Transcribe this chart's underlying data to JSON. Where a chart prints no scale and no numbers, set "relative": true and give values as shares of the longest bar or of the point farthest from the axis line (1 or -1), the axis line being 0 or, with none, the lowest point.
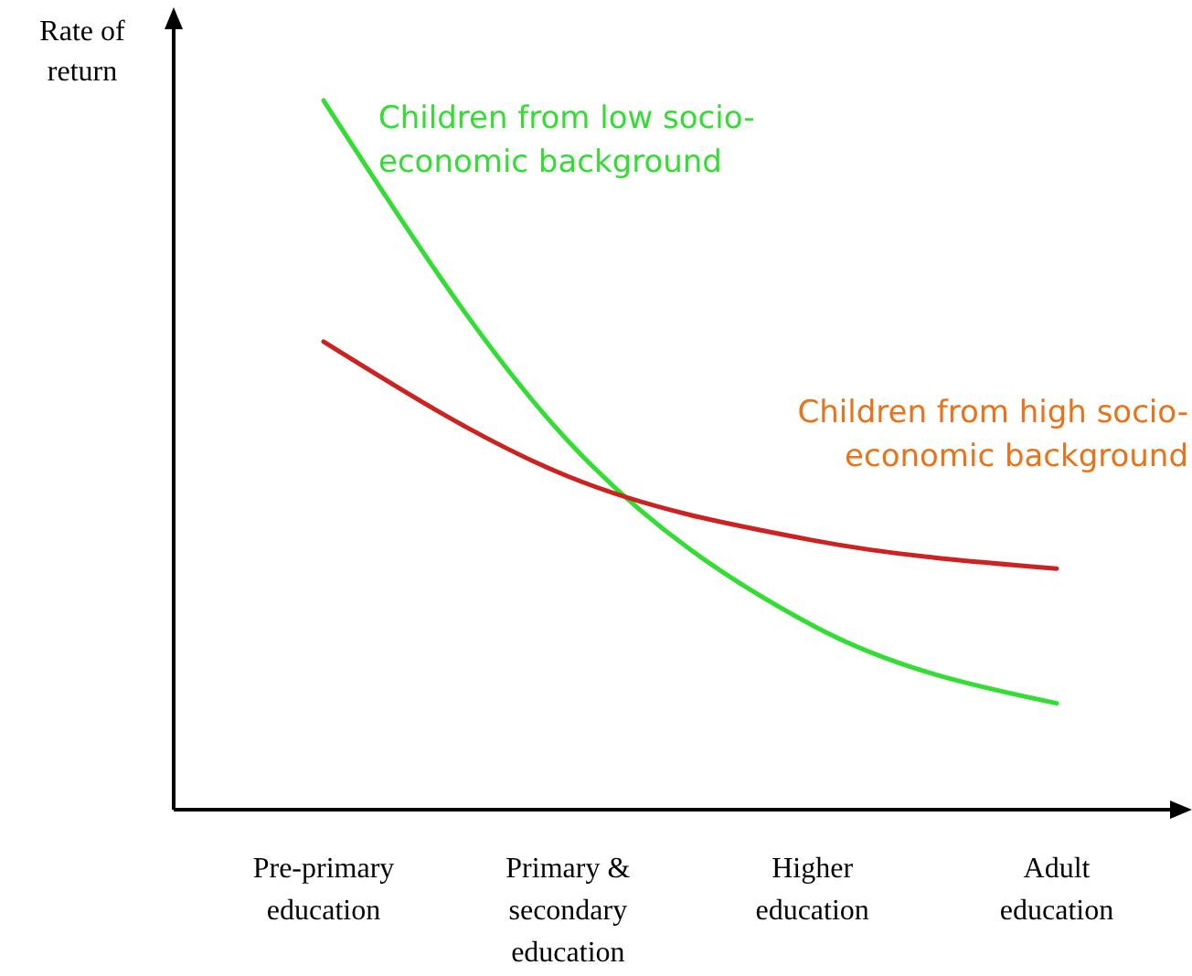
{
  "chart_data": {
    "type": "line",
    "ylabel": "Rate of return",
    "relative": true,
    "categories": [
      "Pre-primary education",
      "Primary & secondary education",
      "Higher education",
      "Adult education"
    ],
    "series": [
      {
        "name": "Children from low socio-economic background",
        "color": "#33dd33",
        "values": [
          1,
          0.52,
          0.26,
          0.15
        ]
      },
      {
        "name": "Children from high socio-economic background",
        "color": "#cc2222",
        "values": [
          0.66,
          0.47,
          0.38,
          0.34
        ]
      }
    ]
  }
}
